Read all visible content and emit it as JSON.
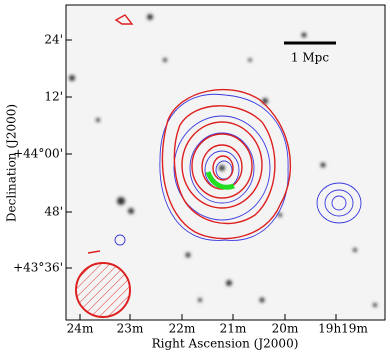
{
  "axes": {
    "x_label": "Right Ascension (J2000)",
    "y_label": "Declination (J2000)",
    "x_ticks": [
      "24m",
      "23m",
      "22m",
      "21m",
      "20m",
      "19h19m"
    ],
    "y_ticks": [
      "24'",
      "12'",
      "+44°00'",
      "48'",
      "+43°36'"
    ]
  },
  "scale_bar": {
    "label": "1 Mpc"
  }
}
